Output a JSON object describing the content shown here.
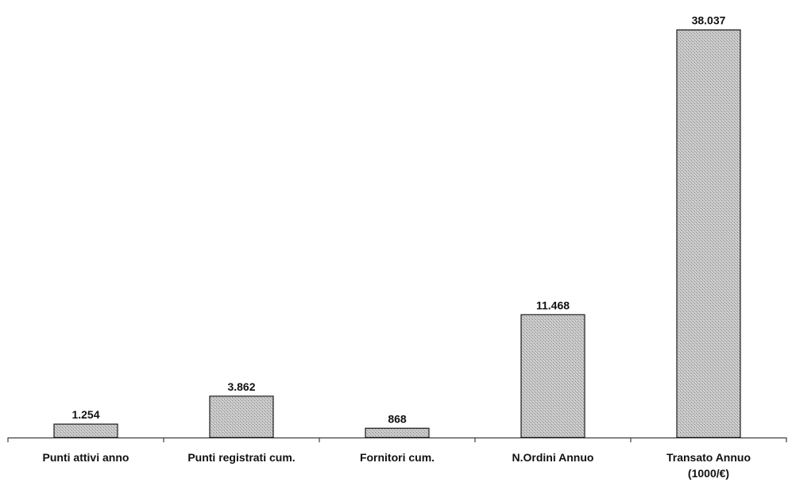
{
  "chart_data": {
    "type": "bar",
    "categories": [
      [
        "Punti attivi anno"
      ],
      [
        "Punti registrati cum."
      ],
      [
        "Fornitori cum."
      ],
      [
        "N.Ordini Annuo"
      ],
      [
        "Transato Annuo",
        "(1000/€)"
      ]
    ],
    "values": [
      1254,
      3862,
      868,
      11468,
      38037
    ],
    "value_labels": [
      "1.254",
      "3.862",
      "868",
      "11.468",
      "38.037"
    ],
    "title": "",
    "xlabel": "",
    "ylabel": "",
    "ylim": [
      0,
      39500
    ],
    "grid": false,
    "legend": "none",
    "bar_color": "#c4c4c4",
    "bar_pattern_dot": "#8a8a8a"
  }
}
